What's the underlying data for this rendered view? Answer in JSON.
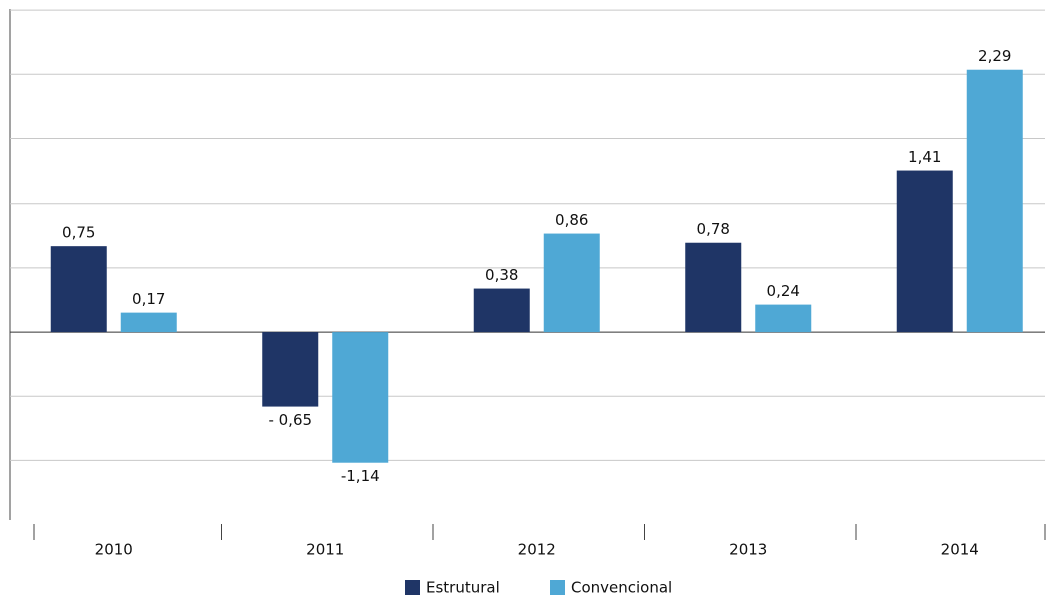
{
  "chart_data": {
    "type": "bar",
    "categories": [
      "2010",
      "2011",
      "2012",
      "2013",
      "2014"
    ],
    "series": [
      {
        "name": "Estrutural",
        "color": "#1f3566",
        "values": [
          0.75,
          -0.65,
          0.38,
          0.78,
          1.41
        ],
        "value_labels": [
          "0,75",
          "- 0,65",
          "0,38",
          "0,78",
          "1,41"
        ]
      },
      {
        "name": "Convencional",
        "color": "#4fa8d5",
        "values": [
          0.17,
          -1.14,
          0.86,
          0.24,
          2.29
        ],
        "value_labels": [
          "0,17",
          "-1,14",
          "0,86",
          "0,24",
          "2,29"
        ]
      }
    ],
    "ylim": [
      -1.64,
      2.82
    ],
    "ygrid": [
      -1.12,
      -0.56,
      0,
      0.56,
      1.12,
      1.69,
      2.25,
      2.81
    ],
    "grid": true
  }
}
